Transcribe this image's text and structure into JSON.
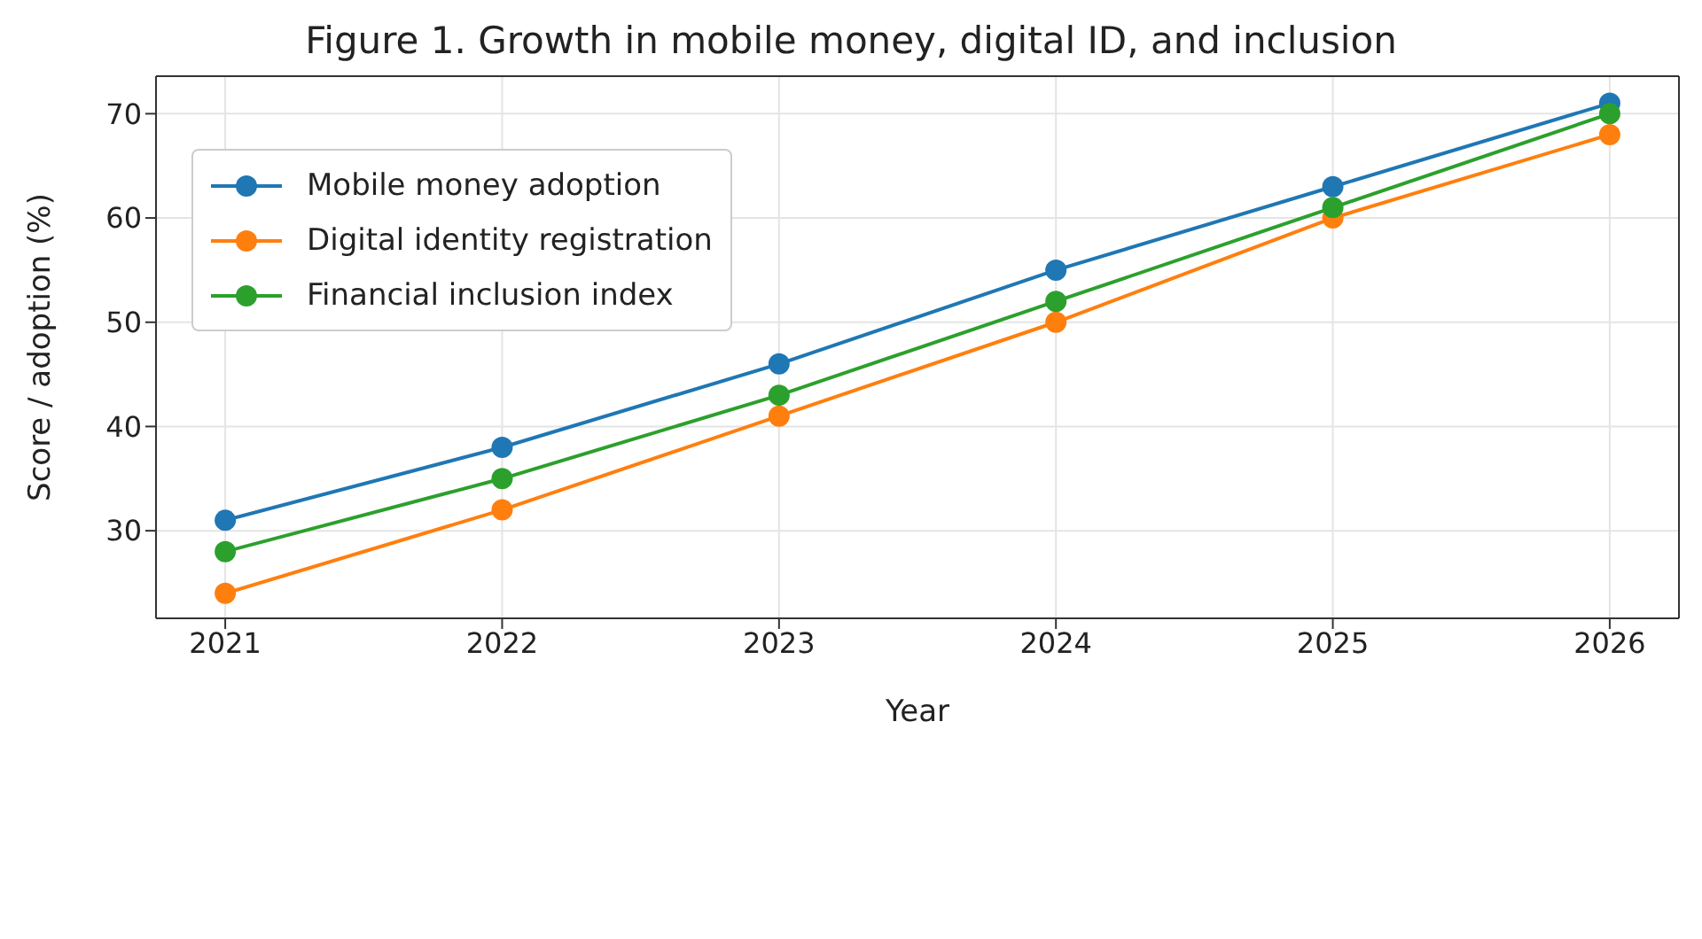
{
  "chart_data": {
    "type": "line",
    "title": "Figure 1. Growth in mobile money, digital ID, and inclusion",
    "xlabel": "Year",
    "ylabel": "Score / adoption (%)",
    "x": [
      2021,
      2022,
      2023,
      2024,
      2025,
      2026
    ],
    "series": [
      {
        "name": "Mobile money adoption",
        "color": "#1f77b4",
        "values": [
          31,
          38,
          46,
          55,
          63,
          71
        ]
      },
      {
        "name": "Digital identity registration",
        "color": "#ff7f0e",
        "values": [
          24,
          32,
          41,
          50,
          60,
          68
        ]
      },
      {
        "name": "Financial inclusion index",
        "color": "#2ca02c",
        "values": [
          28,
          35,
          43,
          52,
          61,
          70
        ]
      }
    ],
    "xlim": [
      2020.75,
      2026.25
    ],
    "xticks": [
      2021,
      2022,
      2023,
      2024,
      2025,
      2026
    ],
    "ylim": [
      21.6,
      73.6
    ],
    "yticks": [
      30,
      40,
      50,
      60,
      70
    ],
    "grid": true,
    "legend": "top left",
    "marker": "circle",
    "line_style": "solid"
  }
}
